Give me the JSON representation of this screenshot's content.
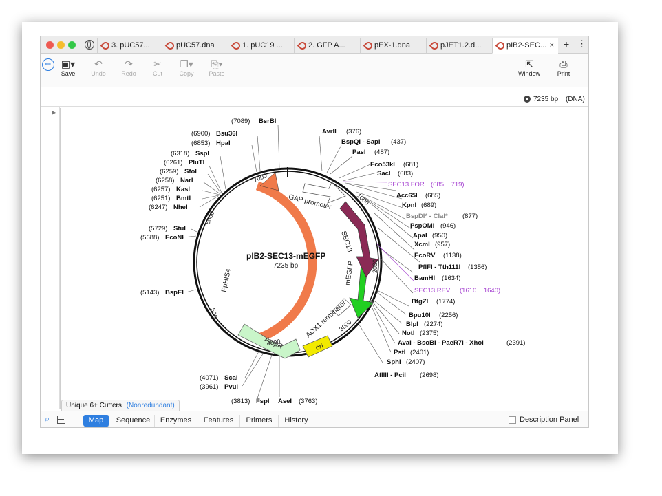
{
  "tabs": [
    {
      "label": "3. pUC57..."
    },
    {
      "label": "pUC57.dna"
    },
    {
      "label": "1. pUC19 ..."
    },
    {
      "label": "2. GFP A..."
    },
    {
      "label": "pEX-1.dna"
    },
    {
      "label": "pJET1.2.d..."
    },
    {
      "label": "pIB2-SEC..."
    }
  ],
  "toolbar": {
    "save": "Save",
    "undo": "Undo",
    "redo": "Redo",
    "cut": "Cut",
    "copy": "Copy",
    "paste": "Paste",
    "window": "Window",
    "print": "Print"
  },
  "info": {
    "size": "7235 bp",
    "type": "(DNA)"
  },
  "map": {
    "name": "pIB2-SEC13-mEGFP",
    "size": "7235 bp",
    "ticks": [
      "1000",
      "2000",
      "3000",
      "4000",
      "5000",
      "6000",
      "7000"
    ],
    "features": {
      "gap": "GAP promoter",
      "sec13": "SEC13",
      "megfp": "mEGFP",
      "aox": "AOX1 terminator",
      "ori": "ori",
      "ampr": "AmpR",
      "pphis4": "PpHIS4"
    },
    "sites_right": [
      {
        "name": "AvrII",
        "pos": "(376)"
      },
      {
        "name": "BspQI - SapI",
        "pos": "(437)"
      },
      {
        "name": "PasI",
        "pos": "(487)"
      },
      {
        "name": "Eco53kI",
        "pos": "(681)"
      },
      {
        "name": "SacI",
        "pos": "(683)"
      },
      {
        "name": "SEC13.FOR",
        "pos": "(685 .. 719)"
      },
      {
        "name": "Acc65I",
        "pos": "(685)"
      },
      {
        "name": "KpnI",
        "pos": "(689)"
      },
      {
        "name": "BspDI* - ClaI*",
        "pos": "(877)"
      },
      {
        "name": "PspOMI",
        "pos": "(946)"
      },
      {
        "name": "ApaI",
        "pos": "(950)"
      },
      {
        "name": "XcmI",
        "pos": "(957)"
      },
      {
        "name": "EcoRV",
        "pos": "(1138)"
      },
      {
        "name": "PflFI - Tth111I",
        "pos": "(1356)"
      },
      {
        "name": "BamHI",
        "pos": "(1634)"
      },
      {
        "name": "SEC13.REV",
        "pos": "(1610 .. 1640)"
      },
      {
        "name": "BtgZI",
        "pos": "(1774)"
      },
      {
        "name": "Bpu10I",
        "pos": "(2256)"
      },
      {
        "name": "BlpI",
        "pos": "(2274)"
      },
      {
        "name": "NotI",
        "pos": "(2375)"
      },
      {
        "name": "AvaI - BsoBI - PaeR7I - XhoI",
        "pos": "(2391)"
      },
      {
        "name": "PstI",
        "pos": "(2401)"
      },
      {
        "name": "SphI",
        "pos": "(2407)"
      },
      {
        "name": "AflIII - PciI",
        "pos": "(2698)"
      }
    ],
    "sites_left": [
      {
        "name": "BsrBI",
        "pos": "(7089)"
      },
      {
        "name": "Bsu36I",
        "pos": "(6900)"
      },
      {
        "name": "HpaI",
        "pos": "(6853)"
      },
      {
        "name": "SspI",
        "pos": "(6318)"
      },
      {
        "name": "PluTI",
        "pos": "(6261)"
      },
      {
        "name": "SfoI",
        "pos": "(6259)"
      },
      {
        "name": "NarI",
        "pos": "(6258)"
      },
      {
        "name": "KasI",
        "pos": "(6257)"
      },
      {
        "name": "BmtI",
        "pos": "(6251)"
      },
      {
        "name": "NheI",
        "pos": "(6247)"
      },
      {
        "name": "StuI",
        "pos": "(5729)"
      },
      {
        "name": "EcoNI",
        "pos": "(5688)"
      },
      {
        "name": "BspEI",
        "pos": "(5143)"
      },
      {
        "name": "ScaI",
        "pos": "(4071)"
      },
      {
        "name": "PvuI",
        "pos": "(3961)"
      },
      {
        "name": "FspI",
        "pos": "(3813)"
      },
      {
        "name": "AseI",
        "pos": "(3763)"
      }
    ]
  },
  "cutters": {
    "label": "Unique 6+ Cutters",
    "mode": "(Nonredundant)"
  },
  "bottom_tabs": [
    "Map",
    "Sequence",
    "Enzymes",
    "Features",
    "Primers",
    "History"
  ],
  "description_panel": "Description Panel",
  "colors": {
    "primer": "#a43fd0",
    "pphis4": "#f07a4a",
    "sec13": "#8a2a55",
    "megfp": "#22d022",
    "ori": "#f2ea00",
    "ampr": "#c9f5c9",
    "active_tab": "#2f7fe0"
  }
}
